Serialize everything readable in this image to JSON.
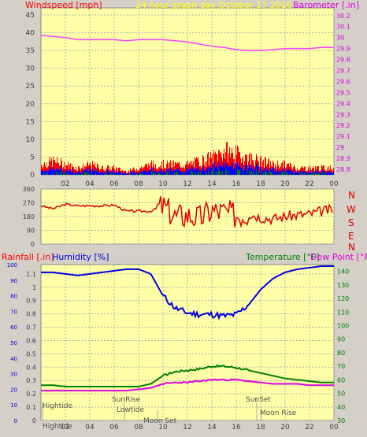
{
  "header": {
    "left_label": "Windspeed [mph]",
    "center_label": "24 hour graph day   October 17 2016",
    "right_label": "Barometer [.in]"
  },
  "colors": {
    "background": "#d4d0c8",
    "plot_bg": "#ffffa8",
    "grid": "#b0b0b0",
    "wind_gust": "#ff0000",
    "wind_avg": "#0000ff",
    "wind_low": "#008000",
    "barometer": "#ff40ff",
    "direction": "#e00000",
    "humidity": "#0000e0",
    "temperature": "#008000",
    "dewpoint": "#e000e0",
    "center_label": "#ffff00",
    "left_label": "#ff0000",
    "right_label": "#e000e0"
  },
  "compass": [
    "N",
    "W",
    "S",
    "E",
    "N"
  ],
  "bottom_header": {
    "rainfall": "Rainfall [.in]",
    "humidity": "Humidity [%]",
    "temperature": "Temperature [°F]",
    "dewpoint": "Dew Point [°F]"
  },
  "annotations": {
    "hightide_top": "Hightide",
    "hightide_bottom": "Hightide",
    "sunrise": "SunRise",
    "lowtide": "Lowtide",
    "moonset": "Moon Set",
    "sunset": "SunSet",
    "moonrise": "Moon Rise"
  },
  "chart_data": [
    {
      "type": "line",
      "name": "wind-barometer",
      "x_ticks": [
        "02",
        "04",
        "06",
        "08",
        "10",
        "12",
        "14",
        "16",
        "18",
        "20",
        "22",
        "00"
      ],
      "y_left_ticks": [
        "0",
        "5",
        "10",
        "15",
        "20",
        "25",
        "30",
        "35",
        "40",
        "45"
      ],
      "y_left_lim": [
        0,
        47
      ],
      "y_right_ticks": [
        "28.8",
        "28.9",
        "29",
        "29.1",
        "29.2",
        "29.3",
        "29.4",
        "29.5",
        "29.6",
        "29.7",
        "29.8",
        "29.9",
        "30",
        "30.1",
        "30.2"
      ],
      "y_right_lim": [
        28.75,
        30.27
      ],
      "x_lim": [
        0,
        24
      ],
      "series": [
        {
          "name": "Windspeed",
          "values": [
            [
              0,
              3
            ],
            [
              1,
              4
            ],
            [
              2,
              3
            ],
            [
              3,
              2
            ],
            [
              4,
              3
            ],
            [
              5,
              2
            ],
            [
              6,
              2
            ],
            [
              7,
              1
            ],
            [
              8,
              2
            ],
            [
              9,
              3
            ],
            [
              10,
              3
            ],
            [
              11,
              3
            ],
            [
              12,
              3
            ],
            [
              13,
              4
            ],
            [
              14,
              5
            ],
            [
              15,
              7
            ],
            [
              16,
              6
            ],
            [
              17,
              5
            ],
            [
              18,
              4
            ],
            [
              19,
              3
            ],
            [
              20,
              3
            ],
            [
              21,
              2
            ],
            [
              22,
              2
            ],
            [
              23,
              2
            ],
            [
              24,
              2
            ]
          ]
        },
        {
          "name": "Barometer",
          "values": [
            [
              0,
              30.02
            ],
            [
              1,
              30.01
            ],
            [
              2,
              30.0
            ],
            [
              3,
              29.98
            ],
            [
              4,
              29.98
            ],
            [
              5,
              29.98
            ],
            [
              6,
              29.98
            ],
            [
              7,
              29.97
            ],
            [
              8,
              29.98
            ],
            [
              9,
              29.98
            ],
            [
              10,
              29.98
            ],
            [
              11,
              29.97
            ],
            [
              12,
              29.96
            ],
            [
              13,
              29.94
            ],
            [
              14,
              29.92
            ],
            [
              15,
              29.91
            ],
            [
              16,
              29.89
            ],
            [
              17,
              29.88
            ],
            [
              18,
              29.88
            ],
            [
              19,
              29.89
            ],
            [
              20,
              29.9
            ],
            [
              21,
              29.9
            ],
            [
              22,
              29.9
            ],
            [
              23,
              29.91
            ],
            [
              24,
              29.91
            ]
          ]
        }
      ]
    },
    {
      "type": "line",
      "name": "wind-direction",
      "y_ticks": [
        "0",
        "90",
        "180",
        "270",
        "360"
      ],
      "y_lim": [
        0,
        360
      ],
      "x_lim": [
        0,
        24
      ],
      "series": [
        {
          "name": "Direction",
          "values": [
            [
              0,
              250
            ],
            [
              1,
              230
            ],
            [
              2,
              260
            ],
            [
              3,
              250
            ],
            [
              4,
              250
            ],
            [
              5,
              250
            ],
            [
              6,
              255
            ],
            [
              7,
              215
            ],
            [
              8,
              215
            ],
            [
              9,
              215
            ],
            [
              10,
              250
            ],
            [
              11,
              180
            ],
            [
              12,
              190
            ],
            [
              13,
              170
            ],
            [
              14,
              220
            ],
            [
              15,
              210
            ],
            [
              16,
              190
            ],
            [
              17,
              200
            ],
            [
              18,
              175
            ],
            [
              19,
              165
            ],
            [
              20,
              180
            ],
            [
              21,
              190
            ],
            [
              22,
              195
            ],
            [
              23,
              215
            ],
            [
              24,
              225
            ]
          ]
        }
      ]
    },
    {
      "type": "line",
      "name": "temp-humidity",
      "y_rain_ticks": [
        "0",
        "0.1",
        "0.2",
        "0.3",
        "0.4",
        "0.5",
        "0.6",
        "0.7",
        "0.8",
        "0.9",
        "1",
        "1.1"
      ],
      "y_rain_lim": [
        0,
        1.17
      ],
      "y_humidity_ticks": [
        "0",
        "10",
        "20",
        "30",
        "40",
        "50",
        "60",
        "70",
        "80",
        "90",
        "100"
      ],
      "y_humidity_lim": [
        0,
        100
      ],
      "y_temp_ticks": [
        "30",
        "40",
        "50",
        "60",
        "70",
        "80",
        "90",
        "100",
        "110",
        "120",
        "130",
        "140"
      ],
      "y_temp_lim": [
        30,
        145
      ],
      "x_lim": [
        0,
        24
      ],
      "series": [
        {
          "name": "Humidity",
          "values": [
            [
              0,
              95
            ],
            [
              1,
              95
            ],
            [
              2,
              94
            ],
            [
              3,
              93
            ],
            [
              4,
              94
            ],
            [
              5,
              95
            ],
            [
              6,
              96
            ],
            [
              7,
              97
            ],
            [
              8,
              97
            ],
            [
              9,
              94
            ],
            [
              10,
              80
            ],
            [
              11,
              72
            ],
            [
              12,
              69
            ],
            [
              13,
              68
            ],
            [
              14,
              68
            ],
            [
              15,
              67
            ],
            [
              16,
              68
            ],
            [
              17,
              74
            ],
            [
              18,
              84
            ],
            [
              19,
              91
            ],
            [
              20,
              95
            ],
            [
              21,
              97
            ],
            [
              22,
              98
            ],
            [
              23,
              99
            ],
            [
              24,
              99
            ]
          ]
        },
        {
          "name": "Temperature",
          "values": [
            [
              0,
              56
            ],
            [
              1,
              56
            ],
            [
              2,
              55
            ],
            [
              3,
              55
            ],
            [
              4,
              55
            ],
            [
              5,
              55
            ],
            [
              6,
              55
            ],
            [
              7,
              55
            ],
            [
              8,
              55
            ],
            [
              9,
              57
            ],
            [
              10,
              63
            ],
            [
              11,
              66
            ],
            [
              12,
              67
            ],
            [
              13,
              68
            ],
            [
              14,
              70
            ],
            [
              15,
              70
            ],
            [
              16,
              69
            ],
            [
              17,
              67
            ],
            [
              18,
              65
            ],
            [
              19,
              63
            ],
            [
              20,
              61
            ],
            [
              21,
              60
            ],
            [
              22,
              59
            ],
            [
              23,
              58
            ],
            [
              24,
              58
            ]
          ]
        },
        {
          "name": "Dew Point",
          "values": [
            [
              0,
              52
            ],
            [
              1,
              52
            ],
            [
              2,
              52
            ],
            [
              3,
              52
            ],
            [
              4,
              52
            ],
            [
              5,
              52
            ],
            [
              6,
              52
            ],
            [
              7,
              52
            ],
            [
              8,
              53
            ],
            [
              9,
              54
            ],
            [
              10,
              57
            ],
            [
              11,
              58
            ],
            [
              12,
              58
            ],
            [
              13,
              59
            ],
            [
              14,
              60
            ],
            [
              15,
              60
            ],
            [
              16,
              60
            ],
            [
              17,
              59
            ],
            [
              18,
              58
            ],
            [
              19,
              57
            ],
            [
              20,
              57
            ],
            [
              21,
              57
            ],
            [
              22,
              56
            ],
            [
              23,
              56
            ],
            [
              24,
              56
            ]
          ]
        }
      ]
    }
  ]
}
